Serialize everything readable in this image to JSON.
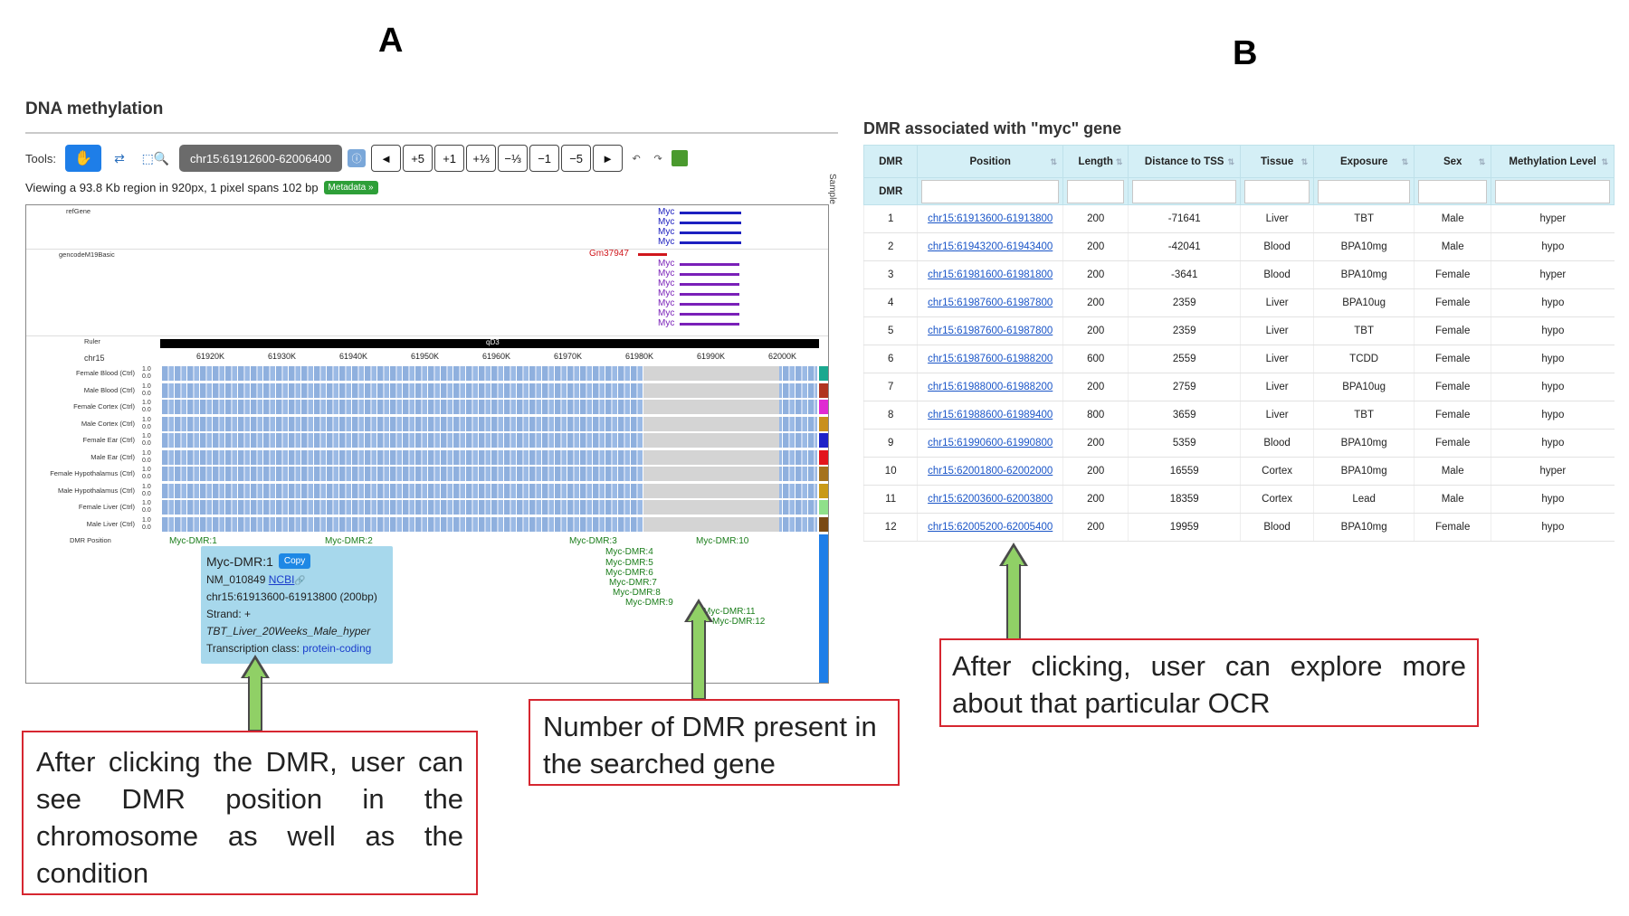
{
  "panels": {
    "a": "A",
    "b": "B"
  },
  "dna": {
    "title": "DNA methylation",
    "tools_label": "Tools:",
    "locus": "chr15:61912600-62006400",
    "nav_buttons": [
      "◄",
      "+5",
      "+1",
      "+⅓",
      "−⅓",
      "−1",
      "−5",
      "►"
    ],
    "viewing": "Viewing a 93.8 Kb region in 920px, 1 pixel spans 102 bp",
    "metadata_badge": "Metadata »",
    "sample_label": "Sample",
    "tracks": {
      "refgene": "refGene",
      "gencode": "gencodeM19Basic",
      "ruler": "Ruler",
      "chr": "chr15",
      "dmr_position": "DMR Position",
      "cytoband": "qD3"
    },
    "ruler_ticks": [
      "61920K",
      "61930K",
      "61940K",
      "61950K",
      "61960K",
      "61970K",
      "61980K",
      "61990K",
      "62000K"
    ],
    "refgene_names": [
      "Myc",
      "Myc",
      "Myc",
      "Myc"
    ],
    "gencode_names": [
      "Gm37947",
      "Myc",
      "Myc",
      "Myc",
      "Myc",
      "Myc",
      "Myc",
      "Myc"
    ],
    "methylation_tracks": [
      {
        "label": "Female Blood (Ctrl)",
        "color": "#1aa88f"
      },
      {
        "label": "Male Blood (Ctrl)",
        "color": "#b0341f"
      },
      {
        "label": "Female Cortex (Ctrl)",
        "color": "#e02ad2"
      },
      {
        "label": "Male Cortex (Ctrl)",
        "color": "#c9901e"
      },
      {
        "label": "Female Ear (Ctrl)",
        "color": "#1d22c8"
      },
      {
        "label": "Male Ear (Ctrl)",
        "color": "#e3151c"
      },
      {
        "label": "Female Hypothalamus (Ctrl)",
        "color": "#a5721e"
      },
      {
        "label": "Male Hypothalamus (Ctrl)",
        "color": "#c99a18"
      },
      {
        "label": "Female Liver (Ctrl)",
        "color": "#8fe08a"
      },
      {
        "label": "Male Liver (Ctrl)",
        "color": "#7a4a14"
      }
    ],
    "scale_top": "1.0",
    "scale_bottom": "0.0",
    "dmr_labels": [
      "Myc-DMR:1",
      "Myc-DMR:2",
      "Myc-DMR:3",
      "Myc-DMR:10",
      "Myc-DMR:4",
      "Myc-DMR:5",
      "Myc-DMR:6",
      "Myc-DMR:7",
      "Myc-DMR:8",
      "Myc-DMR:9",
      "Myc-DMR:11",
      "Myc-DMR:12"
    ],
    "popup": {
      "title": "Myc-DMR:1",
      "copy": "Copy",
      "transcript": "NM_010849",
      "ncbi": "NCBI",
      "coords": "chr15:61913600-61913800 (200bp)",
      "strand": "Strand: +",
      "condition": "TBT_Liver_20Weeks_Male_hyper",
      "class_label": "Transcription class:",
      "class_value": "protein-coding"
    }
  },
  "callouts": {
    "a1": "After clicking the DMR, user can see DMR position in the chromosome as well as the condition",
    "a2": "Number of DMR present in the searched gene",
    "b1": "After clicking, user can explore more about that particular OCR"
  },
  "dmr_table": {
    "title": "DMR associated with \"myc\" gene",
    "headers": [
      "DMR",
      "Position",
      "Length",
      "Distance to TSS",
      "Tissue",
      "Exposure",
      "Sex",
      "Methylation Level"
    ],
    "rows": [
      [
        "1",
        "chr15:61913600-61913800",
        "200",
        "-71641",
        "Liver",
        "TBT",
        "Male",
        "hyper"
      ],
      [
        "2",
        "chr15:61943200-61943400",
        "200",
        "-42041",
        "Blood",
        "BPA10mg",
        "Male",
        "hypo"
      ],
      [
        "3",
        "chr15:61981600-61981800",
        "200",
        "-3641",
        "Blood",
        "BPA10mg",
        "Female",
        "hyper"
      ],
      [
        "4",
        "chr15:61987600-61987800",
        "200",
        "2359",
        "Liver",
        "BPA10ug",
        "Female",
        "hypo"
      ],
      [
        "5",
        "chr15:61987600-61987800",
        "200",
        "2359",
        "Liver",
        "TBT",
        "Female",
        "hypo"
      ],
      [
        "6",
        "chr15:61987600-61988200",
        "600",
        "2559",
        "Liver",
        "TCDD",
        "Female",
        "hypo"
      ],
      [
        "7",
        "chr15:61988000-61988200",
        "200",
        "2759",
        "Liver",
        "BPA10ug",
        "Female",
        "hypo"
      ],
      [
        "8",
        "chr15:61988600-61989400",
        "800",
        "3659",
        "Liver",
        "TBT",
        "Female",
        "hypo"
      ],
      [
        "9",
        "chr15:61990600-61990800",
        "200",
        "5359",
        "Blood",
        "BPA10mg",
        "Female",
        "hypo"
      ],
      [
        "10",
        "chr15:62001800-62002000",
        "200",
        "16559",
        "Cortex",
        "BPA10mg",
        "Male",
        "hyper"
      ],
      [
        "11",
        "chr15:62003600-62003800",
        "200",
        "18359",
        "Cortex",
        "Lead",
        "Male",
        "hypo"
      ],
      [
        "12",
        "chr15:62005200-62005400",
        "200",
        "19959",
        "Blood",
        "BPA10mg",
        "Female",
        "hypo"
      ]
    ]
  }
}
